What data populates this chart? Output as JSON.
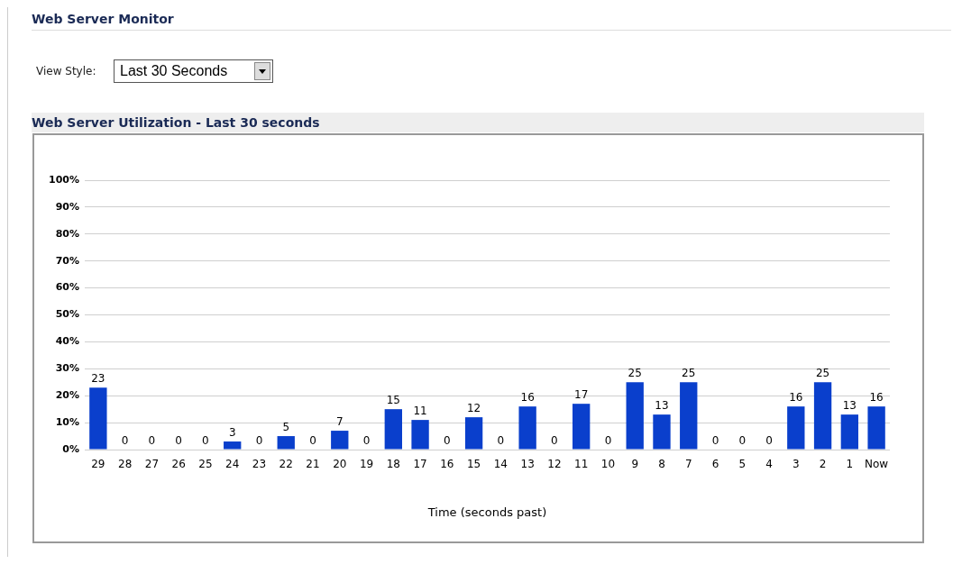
{
  "chart_data": {
    "type": "bar",
    "title": "Web Server Utilization - Last 30 seconds",
    "xlabel": "Time (seconds past)",
    "annotations": [
      "Web Server Monitor",
      "View Style:",
      "Last 30 Seconds"
    ],
    "categories": [
      "29",
      "28",
      "27",
      "26",
      "25",
      "24",
      "23",
      "22",
      "21",
      "20",
      "19",
      "18",
      "17",
      "16",
      "15",
      "14",
      "13",
      "12",
      "11",
      "10",
      "9",
      "8",
      "7",
      "6",
      "5",
      "4",
      "3",
      "2",
      "1",
      "Now"
    ],
    "values": [
      23,
      0,
      0,
      0,
      0,
      3,
      0,
      5,
      0,
      7,
      0,
      15,
      11,
      0,
      12,
      0,
      16,
      0,
      17,
      0,
      25,
      13,
      25,
      0,
      0,
      0,
      16,
      25,
      13,
      16
    ],
    "color": "#0a3fcc",
    "ylim": [
      0,
      100
    ],
    "yticks": [
      {
        "value": 0,
        "label": "0%"
      },
      {
        "value": 10,
        "label": "10%"
      },
      {
        "value": 20,
        "label": "20%"
      },
      {
        "value": 30,
        "label": "30%"
      },
      {
        "value": 40,
        "label": "40%"
      },
      {
        "value": 50,
        "label": "50%"
      },
      {
        "value": 60,
        "label": "60%"
      },
      {
        "value": 70,
        "label": "70%"
      },
      {
        "value": 80,
        "label": "80%"
      },
      {
        "value": 90,
        "label": "90%"
      },
      {
        "value": 100,
        "label": "100%"
      }
    ],
    "grid": "y",
    "data_labels": true,
    "legend": false
  }
}
